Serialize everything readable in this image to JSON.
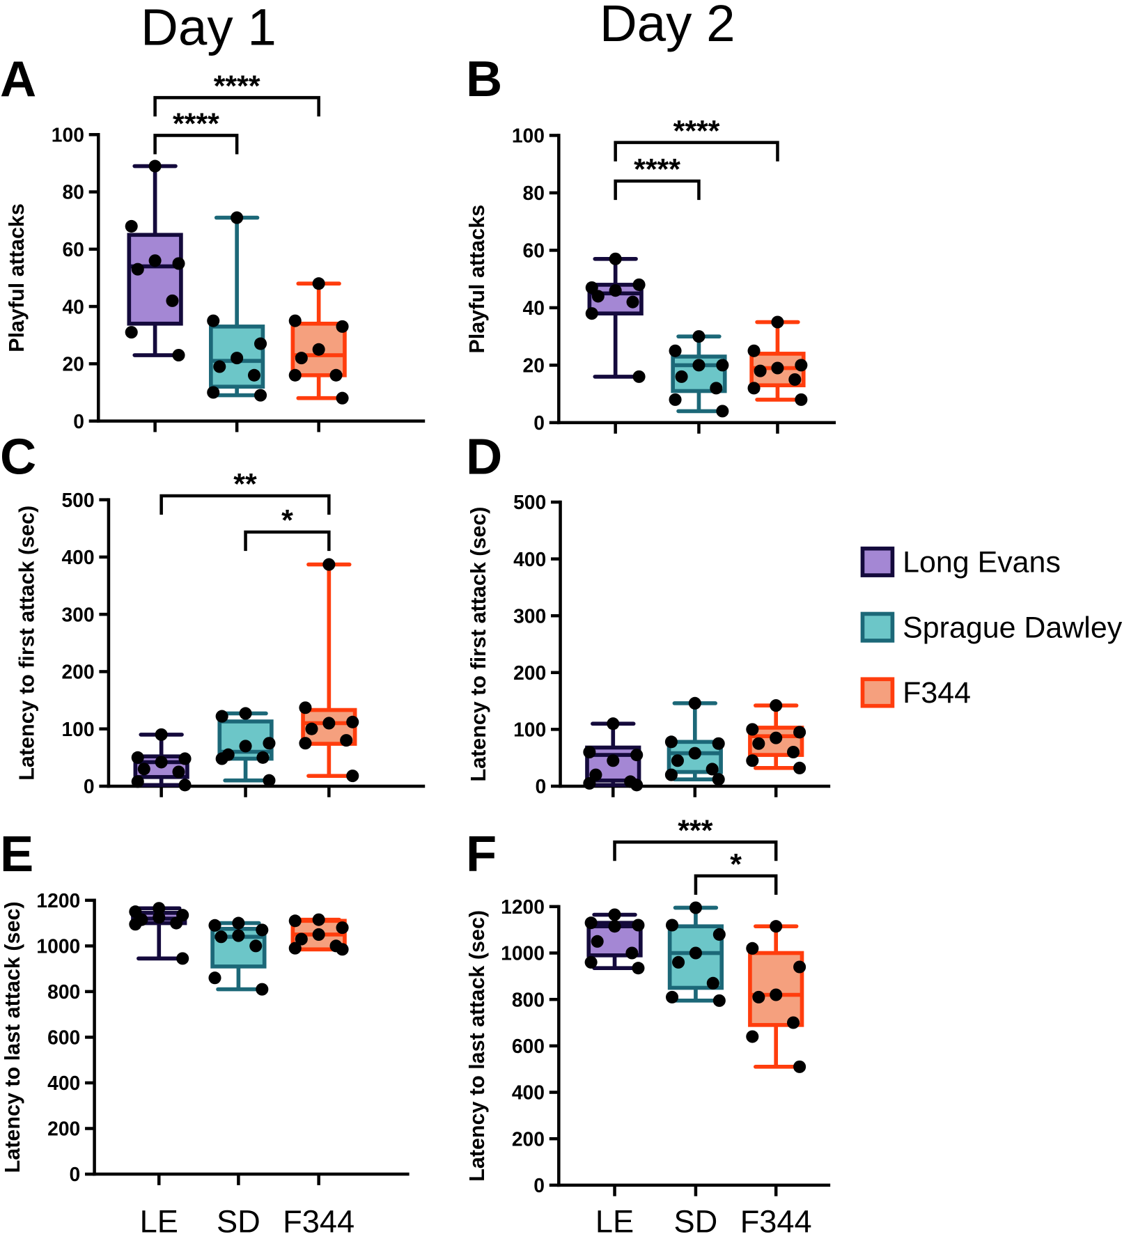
{
  "chart_data": {
    "type": "box",
    "titles": [
      "Day 1",
      "Day 2"
    ],
    "categories": [
      "LE",
      "SD",
      "F344"
    ],
    "legend": {
      "placement": "right",
      "entries": [
        {
          "label": "Long Evans",
          "fill": "#a487d4",
          "stroke": "#140a3c"
        },
        {
          "label": "Sprague Dawley",
          "fill": "#6cc6c8",
          "stroke": "#1c6878"
        },
        {
          "label": "F344",
          "fill": "#f5a07e",
          "stroke": "#ff3d0d"
        }
      ]
    },
    "panels": [
      {
        "letter": "A",
        "ylabel": "Playful attacks",
        "ylim": [
          0,
          100
        ],
        "ticks": [
          0,
          20,
          40,
          60,
          80,
          100
        ],
        "groups": [
          {
            "min": 23,
            "q1": 34,
            "median": 54,
            "q3": 65,
            "max": 89,
            "points": [
              89,
              68,
              55,
              56,
              53,
              42,
              31,
              23
            ]
          },
          {
            "min": 9,
            "q1": 12,
            "median": 21,
            "q3": 33,
            "max": 71,
            "points": [
              71,
              35,
              27,
              22,
              19,
              16,
              10,
              9
            ]
          },
          {
            "min": 8,
            "q1": 16,
            "median": 23,
            "q3": 34,
            "max": 48,
            "points": [
              48,
              35,
              33,
              25,
              22,
              16,
              16,
              8
            ]
          }
        ],
        "sig": [
          {
            "from": 0,
            "to": 1,
            "label": "****"
          },
          {
            "from": 0,
            "to": 2,
            "label": "****"
          }
        ]
      },
      {
        "letter": "B",
        "ylabel": "Playful attacks",
        "ylim": [
          0,
          100
        ],
        "ticks": [
          0,
          20,
          40,
          60,
          80,
          100
        ],
        "groups": [
          {
            "min": 16,
            "q1": 38,
            "median": 45,
            "q3": 48,
            "max": 57,
            "points": [
              57,
              47,
              48,
              46,
              44,
              42,
              38,
              16
            ]
          },
          {
            "min": 4,
            "q1": 11,
            "median": 20,
            "q3": 23,
            "max": 30,
            "points": [
              30,
              25,
              20,
              20,
              16,
              12,
              8,
              4
            ]
          },
          {
            "min": 8,
            "q1": 13,
            "median": 19,
            "q3": 24,
            "max": 35,
            "points": [
              35,
              25,
              20,
              19,
              18,
              15,
              12,
              8
            ]
          }
        ],
        "sig": [
          {
            "from": 0,
            "to": 1,
            "label": "****"
          },
          {
            "from": 0,
            "to": 2,
            "label": "****"
          }
        ]
      },
      {
        "letter": "C",
        "ylabel": "Latency to first attack (sec)",
        "ylim": [
          0,
          500
        ],
        "ticks": [
          0,
          100,
          200,
          300,
          400,
          500
        ],
        "groups": [
          {
            "min": 2,
            "q1": 16,
            "median": 42,
            "q3": 52,
            "max": 90,
            "points": [
              90,
              50,
              48,
              42,
              30,
              25,
              8,
              2
            ]
          },
          {
            "min": 10,
            "q1": 48,
            "median": 60,
            "q3": 113,
            "max": 127,
            "points": [
              127,
              122,
              75,
              70,
              55,
              50,
              48,
              10
            ]
          },
          {
            "min": 18,
            "q1": 74,
            "median": 110,
            "q3": 133,
            "max": 387,
            "points": [
              387,
              137,
              112,
              110,
              100,
              80,
              75,
              18
            ]
          }
        ],
        "sig": [
          {
            "from": 0,
            "to": 2,
            "label": "**"
          },
          {
            "from": 1,
            "to": 2,
            "label": "*"
          }
        ]
      },
      {
        "letter": "D",
        "ylabel": "Latency to first attack (sec)",
        "ylim": [
          0,
          500
        ],
        "ticks": [
          0,
          100,
          200,
          300,
          400,
          500
        ],
        "groups": [
          {
            "min": 2,
            "q1": 10,
            "median": 55,
            "q3": 68,
            "max": 110,
            "points": [
              110,
              60,
              55,
              45,
              20,
              8,
              5,
              2
            ]
          },
          {
            "min": 12,
            "q1": 25,
            "median": 58,
            "q3": 78,
            "max": 146,
            "points": [
              146,
              78,
              75,
              58,
              45,
              30,
              20,
              12
            ]
          },
          {
            "min": 32,
            "q1": 55,
            "median": 88,
            "q3": 103,
            "max": 142,
            "points": [
              142,
              100,
              95,
              85,
              75,
              60,
              45,
              32
            ]
          }
        ],
        "sig": []
      },
      {
        "letter": "E",
        "ylabel": "Latency to last attack (sec)",
        "ylim": [
          0,
          1200
        ],
        "ticks": [
          0,
          200,
          400,
          600,
          800,
          1000,
          1200
        ],
        "groups": [
          {
            "min": 945,
            "q1": 1100,
            "median": 1120,
            "q3": 1145,
            "max": 1165,
            "points": [
              1165,
              1150,
              1135,
              1125,
              1115,
              1100,
              1095,
              945
            ]
          },
          {
            "min": 810,
            "q1": 910,
            "median": 1040,
            "q3": 1075,
            "max": 1100,
            "points": [
              1100,
              1090,
              1070,
              1045,
              1040,
              1000,
              860,
              810
            ]
          },
          {
            "min": 985,
            "q1": 985,
            "median": 1050,
            "q3": 1110,
            "max": 1115,
            "points": [
              1115,
              1110,
              1080,
              1050,
              1030,
              1000,
              990,
              985
            ]
          }
        ],
        "sig": []
      },
      {
        "letter": "F",
        "ylabel": "Latency to last attack (sec)",
        "ylim": [
          0,
          1200
        ],
        "ticks": [
          0,
          200,
          400,
          600,
          800,
          1000,
          1200
        ],
        "groups": [
          {
            "min": 935,
            "q1": 990,
            "median": 1115,
            "q3": 1130,
            "max": 1165,
            "points": [
              1165,
              1130,
              1120,
              1115,
              1050,
              1000,
              960,
              935
            ]
          },
          {
            "min": 795,
            "q1": 850,
            "median": 1000,
            "q3": 1115,
            "max": 1195,
            "points": [
              1195,
              1120,
              1080,
              1000,
              960,
              870,
              810,
              795
            ]
          },
          {
            "min": 510,
            "q1": 690,
            "median": 820,
            "q3": 1000,
            "max": 1115,
            "points": [
              1115,
              1020,
              940,
              820,
              810,
              700,
              640,
              510
            ]
          }
        ],
        "sig": [
          {
            "from": 0,
            "to": 2,
            "label": "***"
          },
          {
            "from": 1,
            "to": 2,
            "label": "*"
          }
        ]
      }
    ]
  }
}
